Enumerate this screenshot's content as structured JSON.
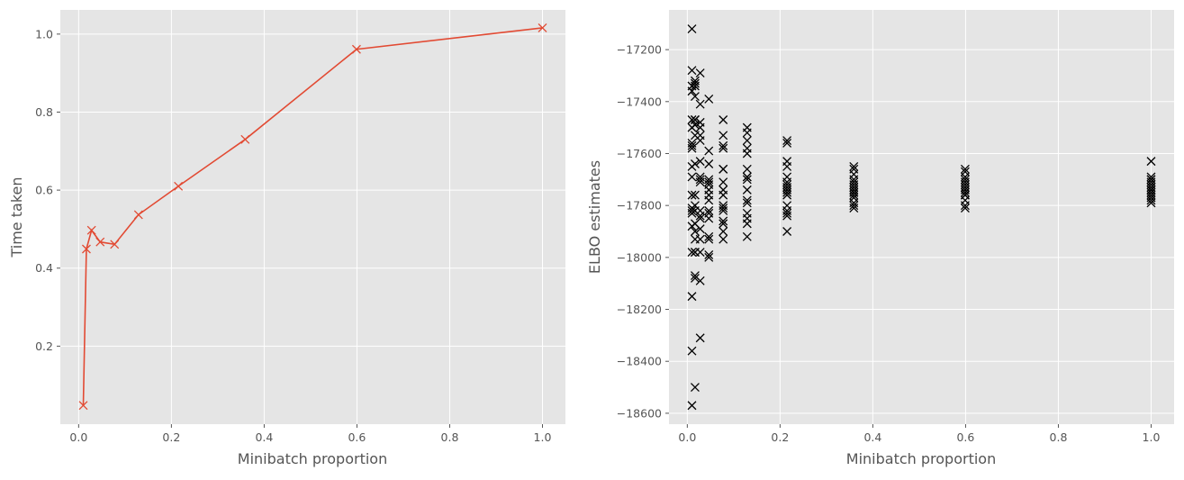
{
  "chart_data": [
    {
      "type": "line",
      "xlabel": "Minibatch proportion",
      "ylabel": "Time taken",
      "xlim": [
        -0.0395,
        1.0495
      ],
      "ylim": [
        0.0,
        1.062
      ],
      "xticks": [
        0.0,
        0.2,
        0.4,
        0.6,
        0.8,
        1.0
      ],
      "xtick_labels": [
        "0.0",
        "0.2",
        "0.4",
        "0.6",
        "0.8",
        "1.0"
      ],
      "yticks": [
        0.2,
        0.4,
        0.6,
        0.8,
        1.0
      ],
      "ytick_labels": [
        "0.2",
        "0.4",
        "0.6",
        "0.8",
        "1.0"
      ],
      "grid": true,
      "marker": "x",
      "color": "#E24A33",
      "x": [
        0.01,
        0.0167,
        0.0278,
        0.0464,
        0.0774,
        0.129,
        0.215,
        0.359,
        0.599,
        1.0
      ],
      "y": [
        0.048,
        0.449,
        0.497,
        0.467,
        0.461,
        0.537,
        0.61,
        0.73,
        0.961,
        1.016
      ]
    },
    {
      "type": "scatter",
      "xlabel": "Minibatch proportion",
      "ylabel": "ELBO estimates",
      "xlim": [
        -0.0395,
        1.0495
      ],
      "ylim": [
        -18642,
        -17047
      ],
      "xticks": [
        0.0,
        0.2,
        0.4,
        0.6,
        0.8,
        1.0
      ],
      "xtick_labels": [
        "0.0",
        "0.2",
        "0.4",
        "0.6",
        "0.8",
        "1.0"
      ],
      "yticks": [
        -17200,
        -17400,
        -17600,
        -17800,
        -18000,
        -18200,
        -18400,
        -18600
      ],
      "ytick_labels": [
        "−17200",
        "−17400",
        "−17600",
        "−17800",
        "−18000",
        "−18200",
        "−18400",
        "−18600"
      ],
      "grid": true,
      "marker": "x",
      "color": "#000000",
      "groups": [
        {
          "x": 0.01,
          "y": [
            -17120,
            -17280,
            -17340,
            -17360,
            -17470,
            -17500,
            -17560,
            -17570,
            -17580,
            -17650,
            -17690,
            -17760,
            -17810,
            -17820,
            -17830,
            -17880,
            -17980,
            -18150,
            -18360,
            -18570
          ]
        },
        {
          "x": 0.0167,
          "y": [
            -17320,
            -17330,
            -17340,
            -17380,
            -17470,
            -17470,
            -17490,
            -17530,
            -17640,
            -17760,
            -17800,
            -17820,
            -17870,
            -17900,
            -17930,
            -17980,
            -17980,
            -18070,
            -18080,
            -18500
          ]
        },
        {
          "x": 0.0278,
          "y": [
            -17290,
            -17410,
            -17480,
            -17500,
            -17530,
            -17550,
            -17630,
            -17690,
            -17700,
            -17710,
            -17820,
            -17840,
            -17850,
            -17890,
            -17930,
            -17980,
            -18090,
            -18310
          ]
        },
        {
          "x": 0.0464,
          "y": [
            -17390,
            -17590,
            -17640,
            -17700,
            -17710,
            -17720,
            -17740,
            -17760,
            -17780,
            -17820,
            -17830,
            -17850,
            -17920,
            -17930,
            -17990,
            -18000
          ]
        },
        {
          "x": 0.0774,
          "y": [
            -17470,
            -17530,
            -17570,
            -17580,
            -17660,
            -17660,
            -17710,
            -17740,
            -17760,
            -17800,
            -17810,
            -17820,
            -17860,
            -17870,
            -17900,
            -17930
          ]
        },
        {
          "x": 0.129,
          "y": [
            -17500,
            -17520,
            -17550,
            -17580,
            -17600,
            -17660,
            -17690,
            -17690,
            -17700,
            -17740,
            -17780,
            -17790,
            -17830,
            -17850,
            -17870,
            -17920
          ]
        },
        {
          "x": 0.215,
          "y": [
            -17550,
            -17560,
            -17630,
            -17650,
            -17690,
            -17710,
            -17720,
            -17730,
            -17740,
            -17750,
            -17760,
            -17800,
            -17820,
            -17830,
            -17840,
            -17900
          ]
        },
        {
          "x": 0.359,
          "y": [
            -17650,
            -17660,
            -17680,
            -17700,
            -17710,
            -17720,
            -17730,
            -17740,
            -17750,
            -17750,
            -17760,
            -17770,
            -17790,
            -17800,
            -17810
          ]
        },
        {
          "x": 0.599,
          "y": [
            -17660,
            -17670,
            -17690,
            -17700,
            -17710,
            -17720,
            -17730,
            -17740,
            -17750,
            -17760,
            -17760,
            -17780,
            -17800,
            -17810
          ]
        },
        {
          "x": 1.0,
          "y": [
            -17630,
            -17690,
            -17700,
            -17700,
            -17710,
            -17720,
            -17730,
            -17740,
            -17740,
            -17750,
            -17760,
            -17770,
            -17780,
            -17790
          ]
        }
      ]
    }
  ],
  "colors": {
    "plot_background": "#E5E5E5",
    "grid": "#FFFFFF"
  }
}
